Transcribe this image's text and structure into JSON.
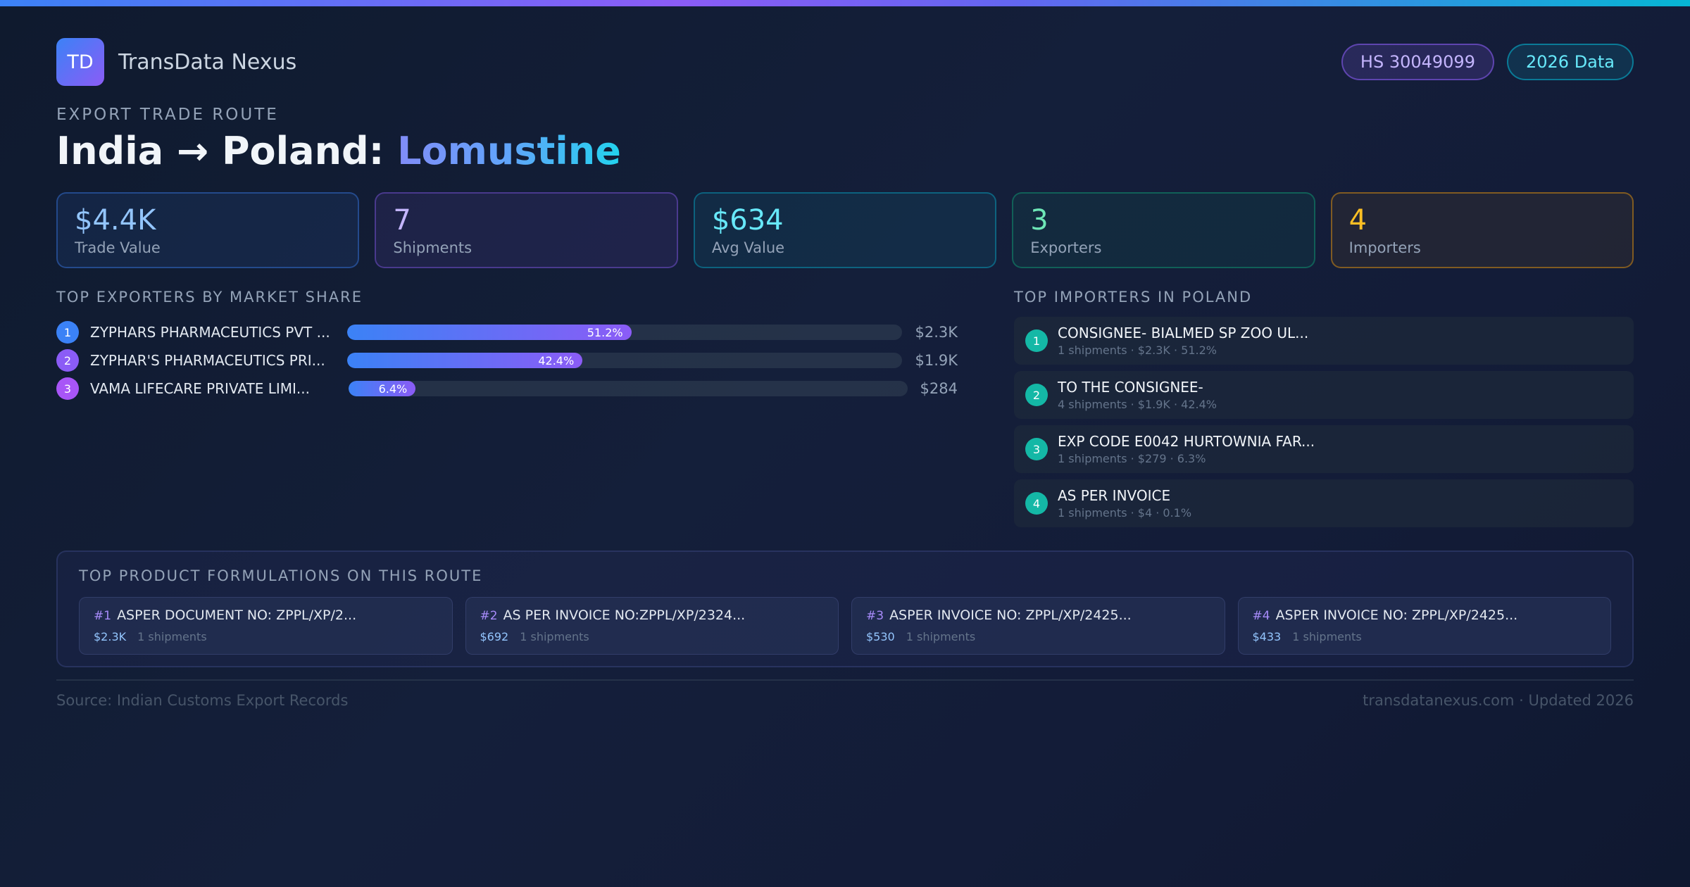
{
  "brand": {
    "logo_text": "TD",
    "name": "TransData Nexus"
  },
  "badges": {
    "hs_code": "HS 30049099",
    "year": "2026 Data"
  },
  "route": {
    "eyebrow": "EXPORT TRADE ROUTE",
    "title_prefix": "India → Poland: ",
    "product": "Lomustine"
  },
  "stats": [
    {
      "value": "$4.4K",
      "label": "Trade Value"
    },
    {
      "value": "7",
      "label": "Shipments"
    },
    {
      "value": "$634",
      "label": "Avg Value"
    },
    {
      "value": "3",
      "label": "Exporters"
    },
    {
      "value": "4",
      "label": "Importers"
    }
  ],
  "exporters": {
    "heading": "TOP EXPORTERS BY MARKET SHARE",
    "items": [
      {
        "rank": "1",
        "name": "ZYPHARS PHARMACEUTICS PVT ...",
        "share": 51.2,
        "share_label": "51.2%",
        "value": "$2.3K",
        "color": "#3b82f6"
      },
      {
        "rank": "2",
        "name": "ZYPHAR'S PHARMACEUTICS PRI...",
        "share": 42.4,
        "share_label": "42.4%",
        "value": "$1.9K",
        "color": "#8b5cf6"
      },
      {
        "rank": "3",
        "name": "VAMA LIFECARE PRIVATE LIMI...",
        "share": 6.4,
        "share_label": "6.4%",
        "value": "$284",
        "color": "#a855f7"
      }
    ]
  },
  "importers": {
    "heading": "TOP IMPORTERS IN POLAND",
    "items": [
      {
        "rank": "1",
        "name": "CONSIGNEE- BIALMED SP ZOO UL...",
        "meta": "1 shipments · $2.3K · 51.2%"
      },
      {
        "rank": "2",
        "name": "TO THE CONSIGNEE-",
        "meta": "4 shipments · $1.9K · 42.4%"
      },
      {
        "rank": "3",
        "name": "EXP CODE E0042 HURTOWNIA FAR...",
        "meta": "1 shipments · $279 · 6.3%"
      },
      {
        "rank": "4",
        "name": "AS PER INVOICE",
        "meta": "1 shipments · $4 · 0.1%"
      }
    ]
  },
  "formulations": {
    "heading": "TOP PRODUCT FORMULATIONS ON THIS ROUTE",
    "items": [
      {
        "rank": "#1",
        "name": "ASPER DOCUMENT NO: ZPPL/XP/2...",
        "value": "$2.3K",
        "shipments": "1 shipments"
      },
      {
        "rank": "#2",
        "name": "AS PER INVOICE NO:ZPPL/XP/2324...",
        "value": "$692",
        "shipments": "1 shipments"
      },
      {
        "rank": "#3",
        "name": "ASPER INVOICE NO: ZPPL/XP/2425...",
        "value": "$530",
        "shipments": "1 shipments"
      },
      {
        "rank": "#4",
        "name": "ASPER INVOICE NO: ZPPL/XP/2425...",
        "value": "$433",
        "shipments": "1 shipments"
      }
    ]
  },
  "footer": {
    "source": "Source: Indian Customs Export Records",
    "site": "transdatanexus.com · Updated 2026"
  }
}
